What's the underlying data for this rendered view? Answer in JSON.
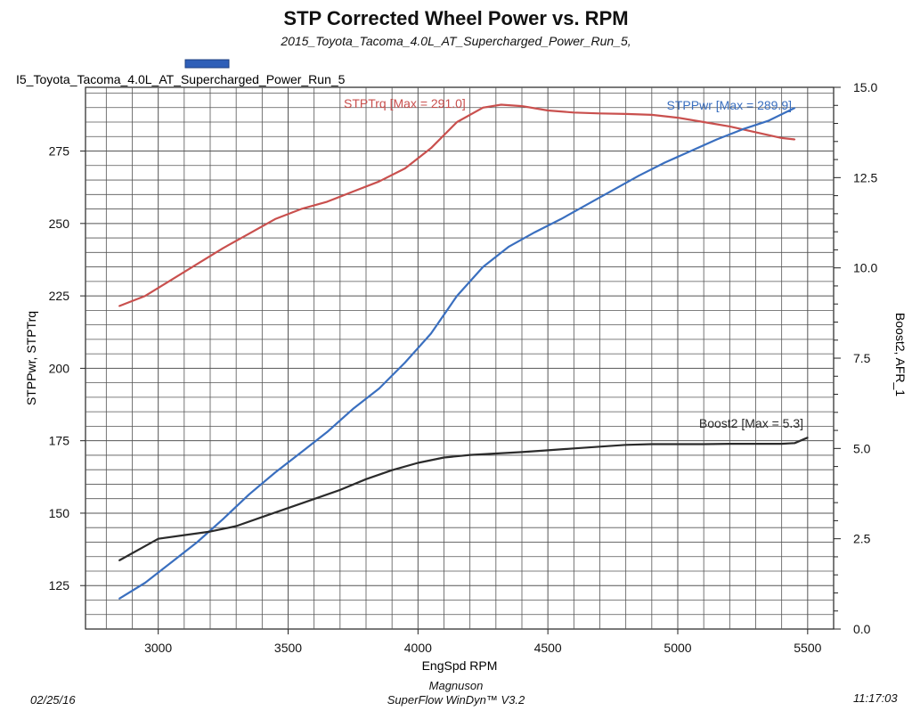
{
  "header": {
    "title": "STP Corrected Wheel Power vs. RPM",
    "subtitle": "2015_Toyota_Tacoma_4.0L_AT_Supercharged_Power_Run_5,"
  },
  "legend": {
    "run_label": "I5_Toyota_Tacoma_4.0L_AT_Supercharged_Power_Run_5",
    "swatch_color": "#2f5fb8"
  },
  "footer": {
    "date": "02/25/16",
    "company": "Magnuson",
    "software": "SuperFlow WinDyn™ V3.2",
    "time": "11:17:03"
  },
  "chart_data": {
    "type": "line",
    "xlabel": "EngSpd RPM",
    "ylabel_left": "STPPwr, STPTrq",
    "ylabel_right": "Boost2, AFR_1",
    "xlim": [
      2720,
      5600
    ],
    "ylim_left": [
      110,
      297
    ],
    "ylim_right": [
      0,
      15
    ],
    "x_ticks": [
      3000,
      3500,
      4000,
      4500,
      5000,
      5500
    ],
    "y_ticks_left": [
      125,
      150,
      175,
      200,
      225,
      250,
      275
    ],
    "y_ticks_right": [
      "0.0",
      "2.5",
      "5.0",
      "7.5",
      "10.0",
      "12.5",
      "15.0"
    ],
    "grid": true,
    "series": [
      {
        "name": "STPTrq",
        "label": "STPTrq [Max = 291.0]",
        "color": "#c9504e",
        "axis": "left",
        "points": [
          [
            2850,
            221.5
          ],
          [
            2950,
            225
          ],
          [
            3050,
            230.5
          ],
          [
            3150,
            236
          ],
          [
            3250,
            241.5
          ],
          [
            3350,
            246.5
          ],
          [
            3450,
            251.5
          ],
          [
            3550,
            255
          ],
          [
            3650,
            257.5
          ],
          [
            3750,
            261
          ],
          [
            3850,
            264.5
          ],
          [
            3950,
            269
          ],
          [
            4050,
            276
          ],
          [
            4150,
            285
          ],
          [
            4250,
            290
          ],
          [
            4320,
            291
          ],
          [
            4400,
            290.5
          ],
          [
            4500,
            289
          ],
          [
            4600,
            288.3
          ],
          [
            4700,
            288
          ],
          [
            4800,
            287.8
          ],
          [
            4900,
            287.5
          ],
          [
            5000,
            286.5
          ],
          [
            5100,
            285
          ],
          [
            5200,
            283.5
          ],
          [
            5300,
            281.5
          ],
          [
            5400,
            279.5
          ],
          [
            5450,
            279
          ]
        ]
      },
      {
        "name": "STPPwr",
        "label": "STPPwr [Max = 289.9]",
        "color": "#3a6fbf",
        "axis": "left",
        "points": [
          [
            2850,
            120.5
          ],
          [
            2950,
            126
          ],
          [
            3050,
            133
          ],
          [
            3150,
            140
          ],
          [
            3250,
            148
          ],
          [
            3350,
            156.5
          ],
          [
            3450,
            164
          ],
          [
            3550,
            171
          ],
          [
            3650,
            178
          ],
          [
            3750,
            186
          ],
          [
            3850,
            193
          ],
          [
            3950,
            202
          ],
          [
            4050,
            212
          ],
          [
            4150,
            225
          ],
          [
            4250,
            235
          ],
          [
            4350,
            242
          ],
          [
            4450,
            247
          ],
          [
            4550,
            251.5
          ],
          [
            4650,
            256.5
          ],
          [
            4750,
            261.5
          ],
          [
            4850,
            266.5
          ],
          [
            4950,
            271
          ],
          [
            5050,
            275
          ],
          [
            5150,
            279
          ],
          [
            5250,
            282.5
          ],
          [
            5350,
            285.5
          ],
          [
            5450,
            289.9
          ]
        ]
      },
      {
        "name": "Boost2",
        "label": "Boost2 [Max = 5.3]",
        "color": "#2b2b2b",
        "axis": "right",
        "points": [
          [
            2850,
            1.9
          ],
          [
            2950,
            2.3
          ],
          [
            3000,
            2.5
          ],
          [
            3100,
            2.6
          ],
          [
            3200,
            2.7
          ],
          [
            3300,
            2.85
          ],
          [
            3400,
            3.1
          ],
          [
            3500,
            3.35
          ],
          [
            3600,
            3.6
          ],
          [
            3700,
            3.85
          ],
          [
            3800,
            4.15
          ],
          [
            3900,
            4.4
          ],
          [
            4000,
            4.6
          ],
          [
            4100,
            4.75
          ],
          [
            4200,
            4.82
          ],
          [
            4300,
            4.86
          ],
          [
            4400,
            4.9
          ],
          [
            4500,
            4.95
          ],
          [
            4600,
            5.0
          ],
          [
            4700,
            5.05
          ],
          [
            4800,
            5.1
          ],
          [
            4900,
            5.12
          ],
          [
            5000,
            5.12
          ],
          [
            5100,
            5.12
          ],
          [
            5200,
            5.13
          ],
          [
            5300,
            5.13
          ],
          [
            5400,
            5.13
          ],
          [
            5450,
            5.15
          ],
          [
            5500,
            5.3
          ]
        ]
      }
    ]
  }
}
